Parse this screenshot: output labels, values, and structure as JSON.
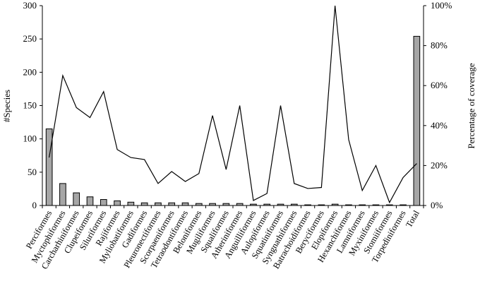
{
  "chart_data": {
    "type": "bar",
    "title": "",
    "xlabel": "",
    "ylabel": "#Species",
    "y2label": "Percentage of coverage",
    "ylim": [
      0,
      300
    ],
    "y2lim": [
      0,
      100
    ],
    "yticks": [
      "0",
      "50",
      "100",
      "150",
      "200",
      "250",
      "300"
    ],
    "y2ticks": [
      "0%",
      "20%",
      "40%",
      "60%",
      "80%",
      "100%"
    ],
    "grid": false,
    "legend": "none",
    "categories": [
      "Perciformes",
      "Myctophiformes",
      "Carcharhiniformes",
      "Clupeiformes",
      "Siluriformes",
      "Rajiformes",
      "Myliobatiformes",
      "Gadiformes",
      "Pleuronectiformes",
      "Scorpaeniformes",
      "Tetraodontiformes",
      "Beloniformes",
      "Mugiliformes",
      "Squaliformes",
      "Atheriniformes",
      "Anguilliformes",
      "Aulopiformes",
      "Squatiniformes",
      "Syngnathiformes",
      "Batrachoidiformes",
      "Beryciformes",
      "Elopiformes",
      "Hexanchiformes",
      "Lamniformes",
      "Myxiniformes",
      "Stomiiformes",
      "Torpediniformes",
      "Total"
    ],
    "series": [
      {
        "type": "bar",
        "axis": "left",
        "values": [
          115,
          33,
          19,
          13,
          9,
          7,
          5,
          4,
          4,
          4,
          4,
          3,
          3,
          3,
          3,
          2,
          2,
          2,
          2,
          1,
          1,
          2,
          1,
          1,
          1,
          1,
          1,
          254
        ]
      },
      {
        "type": "line",
        "axis": "right",
        "values": [
          24,
          65,
          49,
          44,
          57,
          28,
          24,
          23,
          11,
          17,
          12,
          16,
          45,
          18,
          50,
          2.5,
          6,
          50,
          11,
          8.5,
          9,
          100,
          33,
          7.5,
          20,
          1.5,
          14,
          21
        ]
      }
    ],
    "colors": {
      "bar_fill": "#a6a6a6",
      "bar_stroke": "#000000",
      "line": "#000000",
      "axis": "#000000"
    }
  }
}
